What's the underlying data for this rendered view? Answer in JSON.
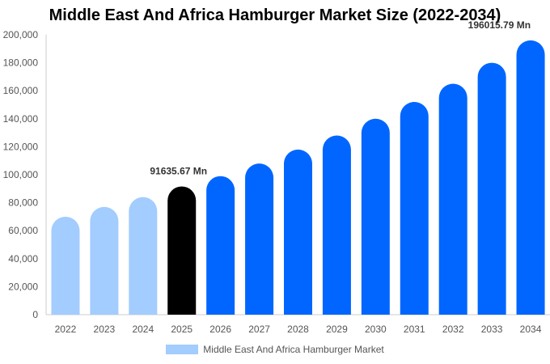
{
  "chart_data": {
    "type": "bar",
    "title": "Middle East And Africa Hamburger Market Size (2022-2034)",
    "categories": [
      "2022",
      "2023",
      "2024",
      "2025",
      "2026",
      "2027",
      "2028",
      "2029",
      "2030",
      "2031",
      "2032",
      "2033",
      "2034"
    ],
    "series": [
      {
        "name": "Middle East And Africa Hamburger Market",
        "values": [
          70000,
          77000,
          84000,
          91635.67,
          99000,
          108000,
          118000,
          128000,
          140000,
          152000,
          165000,
          180000,
          196015.79
        ]
      }
    ],
    "y_ticks": [
      "0",
      "20,000",
      "40,000",
      "60,000",
      "80,000",
      "100,000",
      "120,000",
      "140,000",
      "160,000",
      "180,000",
      "200,000"
    ],
    "ylim": [
      0,
      200000
    ],
    "annotations": [
      {
        "category": "2025",
        "text": "91635.67 Mn"
      },
      {
        "category": "2034",
        "text": "196015.79 Mn"
      }
    ],
    "legend_position": "bottom",
    "colors": {
      "historical": "#a3ccff",
      "current": "#000000",
      "forecast": "#0066ff"
    }
  }
}
